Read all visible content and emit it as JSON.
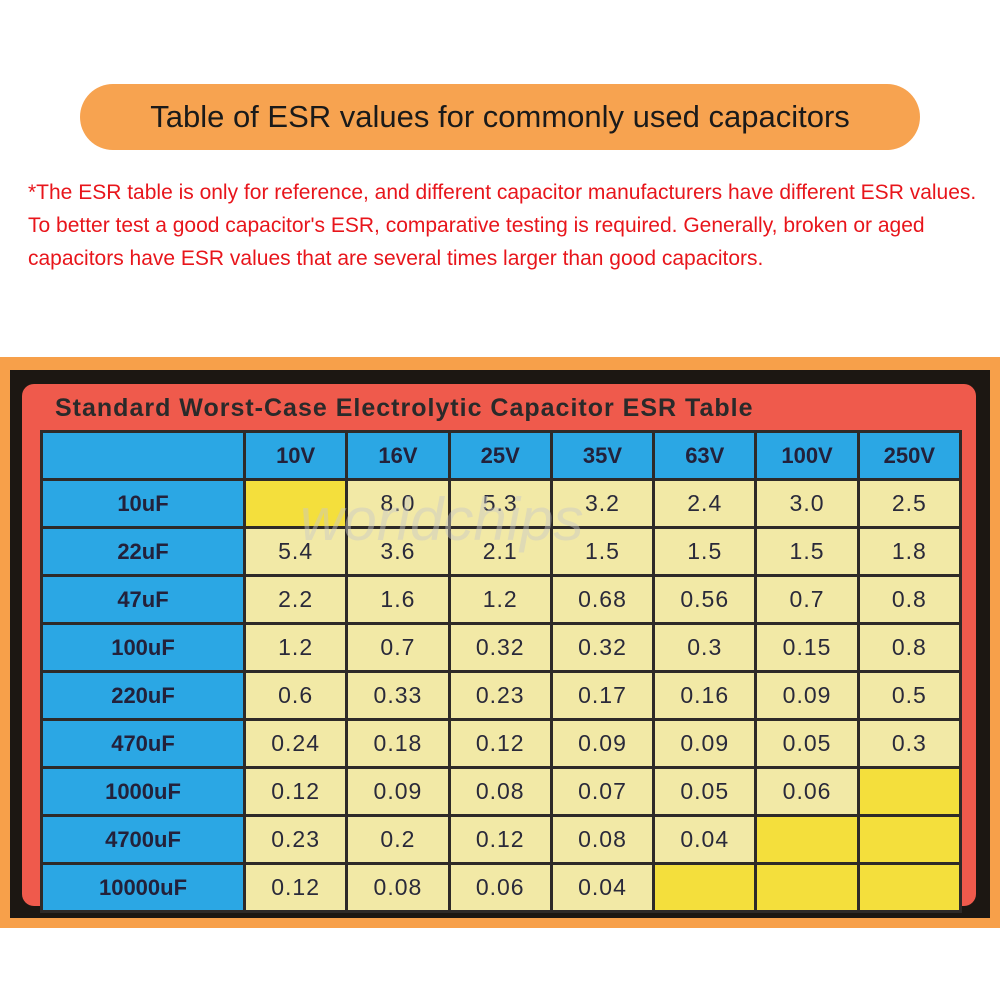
{
  "header": {
    "title": "Table of ESR values for commonly used capacitors"
  },
  "note": "*The ESR table is only for reference, and different capacitor manufacturers have different ESR values. To better test a good capacitor's ESR, comparative testing is required. Generally, broken or aged capacitors have ESR values that are several times larger than good capacitors.",
  "watermark": "worldchips",
  "table": {
    "title": "Standard Worst-Case Electrolytic Capacitor ESR Table",
    "columns": [
      "10V",
      "16V",
      "25V",
      "35V",
      "63V",
      "100V",
      "250V"
    ],
    "rows": [
      {
        "label": "10uF",
        "cells": [
          null,
          "8.0",
          "5.3",
          "3.2",
          "2.4",
          "3.0",
          "2.5"
        ]
      },
      {
        "label": "22uF",
        "cells": [
          "5.4",
          "3.6",
          "2.1",
          "1.5",
          "1.5",
          "1.5",
          "1.8"
        ]
      },
      {
        "label": "47uF",
        "cells": [
          "2.2",
          "1.6",
          "1.2",
          "0.68",
          "0.56",
          "0.7",
          "0.8"
        ]
      },
      {
        "label": "100uF",
        "cells": [
          "1.2",
          "0.7",
          "0.32",
          "0.32",
          "0.3",
          "0.15",
          "0.8"
        ]
      },
      {
        "label": "220uF",
        "cells": [
          "0.6",
          "0.33",
          "0.23",
          "0.17",
          "0.16",
          "0.09",
          "0.5"
        ]
      },
      {
        "label": "470uF",
        "cells": [
          "0.24",
          "0.18",
          "0.12",
          "0.09",
          "0.09",
          "0.05",
          "0.3"
        ]
      },
      {
        "label": "1000uF",
        "cells": [
          "0.12",
          "0.09",
          "0.08",
          "0.07",
          "0.05",
          "0.06",
          null
        ]
      },
      {
        "label": "4700uF",
        "cells": [
          "0.23",
          "0.2",
          "0.12",
          "0.08",
          "0.04",
          null,
          null
        ]
      },
      {
        "label": "10000uF",
        "cells": [
          "0.12",
          "0.08",
          "0.06",
          "0.04",
          null,
          null,
          null
        ]
      }
    ]
  }
}
